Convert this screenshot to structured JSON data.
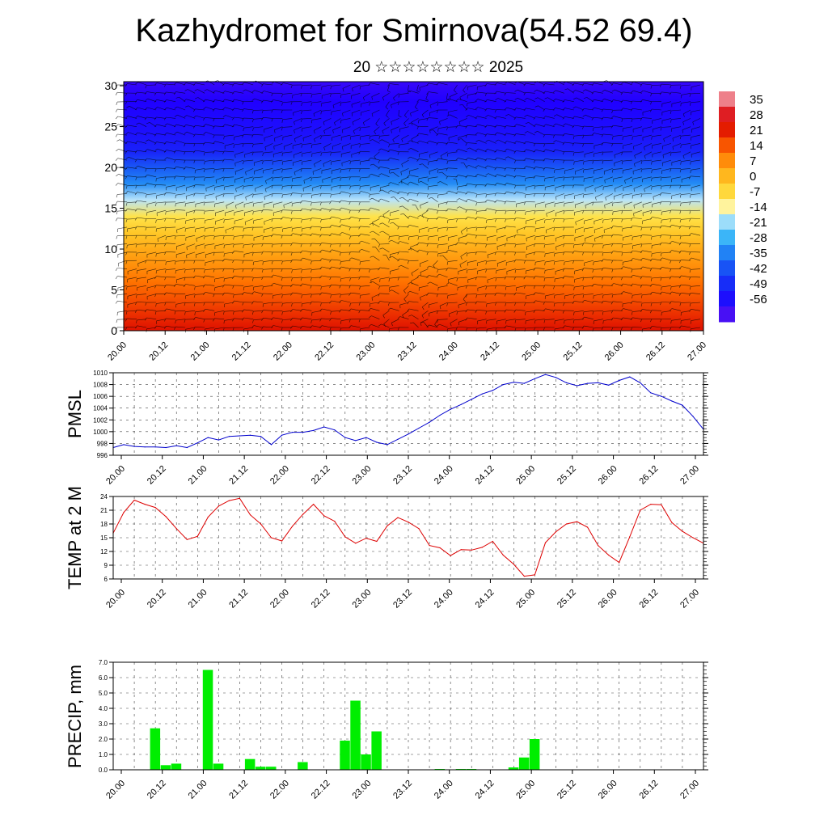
{
  "header": {
    "title": "Kazhydromet for Smirnova(54.52 69.4)",
    "subtitle": "20 ☆☆☆☆☆☆☆☆ 2025"
  },
  "chart_data": [
    {
      "type": "heatmap",
      "title": "",
      "xlabel": "",
      "ylabel": "",
      "x_tick_labels": [
        "20.00",
        "20.12",
        "21.00",
        "21.12",
        "22.00",
        "22.12",
        "23.00",
        "23.12",
        "24.00",
        "24.12",
        "25.00",
        "25.12",
        "26.00",
        "26.12",
        "27.00"
      ],
      "y_ticks": [
        0,
        5,
        10,
        15,
        20,
        25,
        30
      ],
      "ylim": [
        0,
        30.5
      ],
      "colorbar": {
        "labels": [
          "35",
          "28",
          "21",
          "14",
          "7",
          "0",
          "-7",
          "-14",
          "-21",
          "-28",
          "-35",
          "-42",
          "-49",
          "-56"
        ],
        "range": [
          -63,
          42
        ]
      },
      "temperature_profile": {
        "levels": [
          0,
          2,
          4,
          6,
          8,
          10,
          12,
          14,
          16,
          18,
          20,
          22,
          24,
          26,
          28,
          30.5
        ],
        "values": [
          26,
          22,
          18,
          14,
          10,
          6,
          0,
          -6,
          -16,
          -30,
          -38,
          -48,
          -52,
          -54,
          -56,
          -58
        ]
      },
      "overlay": "wind barbs"
    },
    {
      "type": "line",
      "ylabel": "PMSL",
      "ylim": [
        996,
        1010
      ],
      "y_ticks": [
        996,
        998,
        1000,
        1002,
        1004,
        1006,
        1008,
        1010
      ],
      "x_tick_labels": [
        "20.00",
        "20.12",
        "21.00",
        "21.12",
        "22.00",
        "22.12",
        "23.00",
        "23.12",
        "24.00",
        "24.12",
        "25.00",
        "25.12",
        "26.00",
        "26.12",
        "27.00"
      ],
      "color": "#0000cc",
      "x": [
        0,
        3,
        6,
        9,
        12,
        15,
        18,
        21,
        24,
        27,
        30,
        33,
        36,
        39,
        42,
        45,
        48,
        51,
        54,
        57,
        60,
        63,
        66,
        69,
        72,
        75,
        78,
        81,
        84,
        87,
        90,
        93,
        96,
        99,
        102,
        105,
        108,
        111,
        114,
        117,
        120,
        123,
        126,
        129,
        132,
        135,
        138,
        141,
        144,
        147,
        150,
        153,
        156,
        159,
        162,
        165,
        168
      ],
      "values": [
        997.3,
        997.8,
        997.5,
        997.4,
        997.4,
        997.3,
        997.6,
        997.3,
        998.1,
        999.0,
        998.6,
        999.2,
        999.3,
        999.4,
        999.2,
        997.8,
        999.4,
        999.9,
        999.9,
        1000.2,
        1000.8,
        1000.3,
        999.0,
        998.5,
        999.0,
        998.2,
        997.8,
        998.7,
        999.6,
        1000.6,
        1001.6,
        1002.8,
        1003.8,
        1004.6,
        1005.5,
        1006.4,
        1007.0,
        1008.0,
        1008.4,
        1008.2,
        1009.0,
        1009.7,
        1009.2,
        1008.3,
        1007.8,
        1008.2,
        1008.3,
        1007.9,
        1008.7,
        1009.3,
        1008.3,
        1006.6,
        1006.0,
        1005.2,
        1004.5,
        1002.6,
        1000.4
      ]
    },
    {
      "type": "line",
      "ylabel": "TEMP at 2 M",
      "ylim": [
        6,
        24
      ],
      "y_ticks": [
        6,
        9,
        12,
        15,
        18,
        21,
        24
      ],
      "x_tick_labels": [
        "20.00",
        "20.12",
        "21.00",
        "21.12",
        "22.00",
        "22.12",
        "23.00",
        "23.12",
        "24.00",
        "24.12",
        "25.00",
        "25.12",
        "26.00",
        "26.12",
        "27.00"
      ],
      "color": "#dd0000",
      "x": [
        0,
        3,
        6,
        9,
        12,
        15,
        18,
        21,
        24,
        27,
        30,
        33,
        36,
        39,
        42,
        45,
        48,
        51,
        54,
        57,
        60,
        63,
        66,
        69,
        72,
        75,
        78,
        81,
        84,
        87,
        90,
        93,
        96,
        99,
        102,
        105,
        108,
        111,
        114,
        117,
        120,
        123,
        126,
        129,
        132,
        135,
        138,
        141,
        144,
        147,
        150,
        153,
        156,
        159,
        162,
        165,
        168
      ],
      "values": [
        16.0,
        20.5,
        23.2,
        22.3,
        21.6,
        19.6,
        17.0,
        14.6,
        15.3,
        19.5,
        21.9,
        23.1,
        23.6,
        20.0,
        18.0,
        15.0,
        14.3,
        17.5,
        20.1,
        22.3,
        19.8,
        18.6,
        15.2,
        13.8,
        14.9,
        14.2,
        17.6,
        19.4,
        18.4,
        17.0,
        13.3,
        12.8,
        11.1,
        12.4,
        12.3,
        12.9,
        14.2,
        11.2,
        9.2,
        6.6,
        6.9,
        13.9,
        16.3,
        18.0,
        18.5,
        17.3,
        13.3,
        11.2,
        9.6,
        15.2,
        21.0,
        22.3,
        22.2,
        18.3,
        16.4,
        15.0,
        13.8
      ]
    },
    {
      "type": "bar",
      "ylabel": "PRECIP, mm",
      "ylim": [
        0,
        7
      ],
      "y_ticks": [
        "0.0",
        "1.0",
        "2.0",
        "3.0",
        "4.0",
        "5.0",
        "6.0",
        "7.0"
      ],
      "x_tick_labels": [
        "20.00",
        "20.12",
        "21.00",
        "21.12",
        "22.00",
        "22.12",
        "23.00",
        "23.12",
        "24.00",
        "24.12",
        "25.00",
        "25.12",
        "26.00",
        "26.12",
        "27.00"
      ],
      "color": "#00ee00",
      "x": [
        12,
        15,
        18,
        27,
        30,
        39,
        42,
        45,
        54,
        66,
        69,
        72,
        75,
        93,
        99,
        102,
        114,
        117,
        120
      ],
      "values": [
        2.7,
        0.3,
        0.4,
        6.5,
        0.4,
        0.7,
        0.2,
        0.2,
        0.5,
        1.9,
        4.5,
        1.0,
        2.5,
        0.05,
        0.05,
        0.05,
        0.15,
        0.8,
        2.0
      ]
    }
  ]
}
